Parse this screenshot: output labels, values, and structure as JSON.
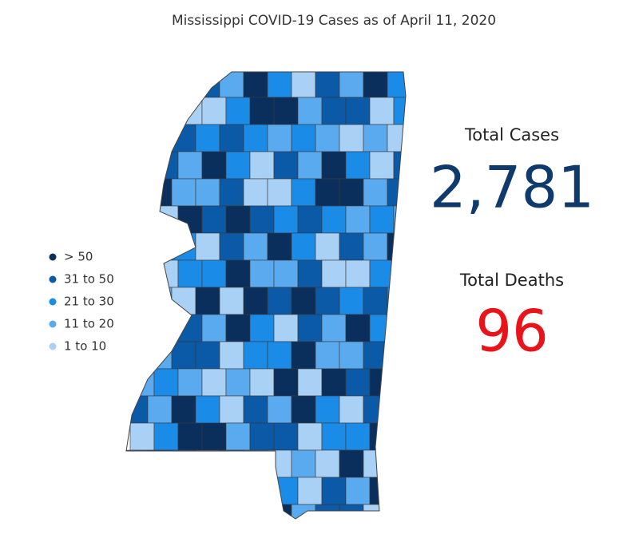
{
  "header": {
    "title": "Mississippi COVID-19 Cases as of April 11, 2020"
  },
  "legend": [
    {
      "label": "> 50",
      "color": "#0b2f5c"
    },
    {
      "label": "31 to 50",
      "color": "#0a5aa8"
    },
    {
      "label": "21 to 30",
      "color": "#1a8ce8"
    },
    {
      "label": "11 to 20",
      "color": "#5aaaf0"
    },
    {
      "label": "1 to 10",
      "color": "#a9d0f5"
    }
  ],
  "stats": [
    {
      "label": "Total Cases",
      "value": "2,781",
      "color": "#0e3a6e"
    },
    {
      "label": "Total Deaths",
      "value": "96",
      "color": "#e8141a"
    }
  ]
}
